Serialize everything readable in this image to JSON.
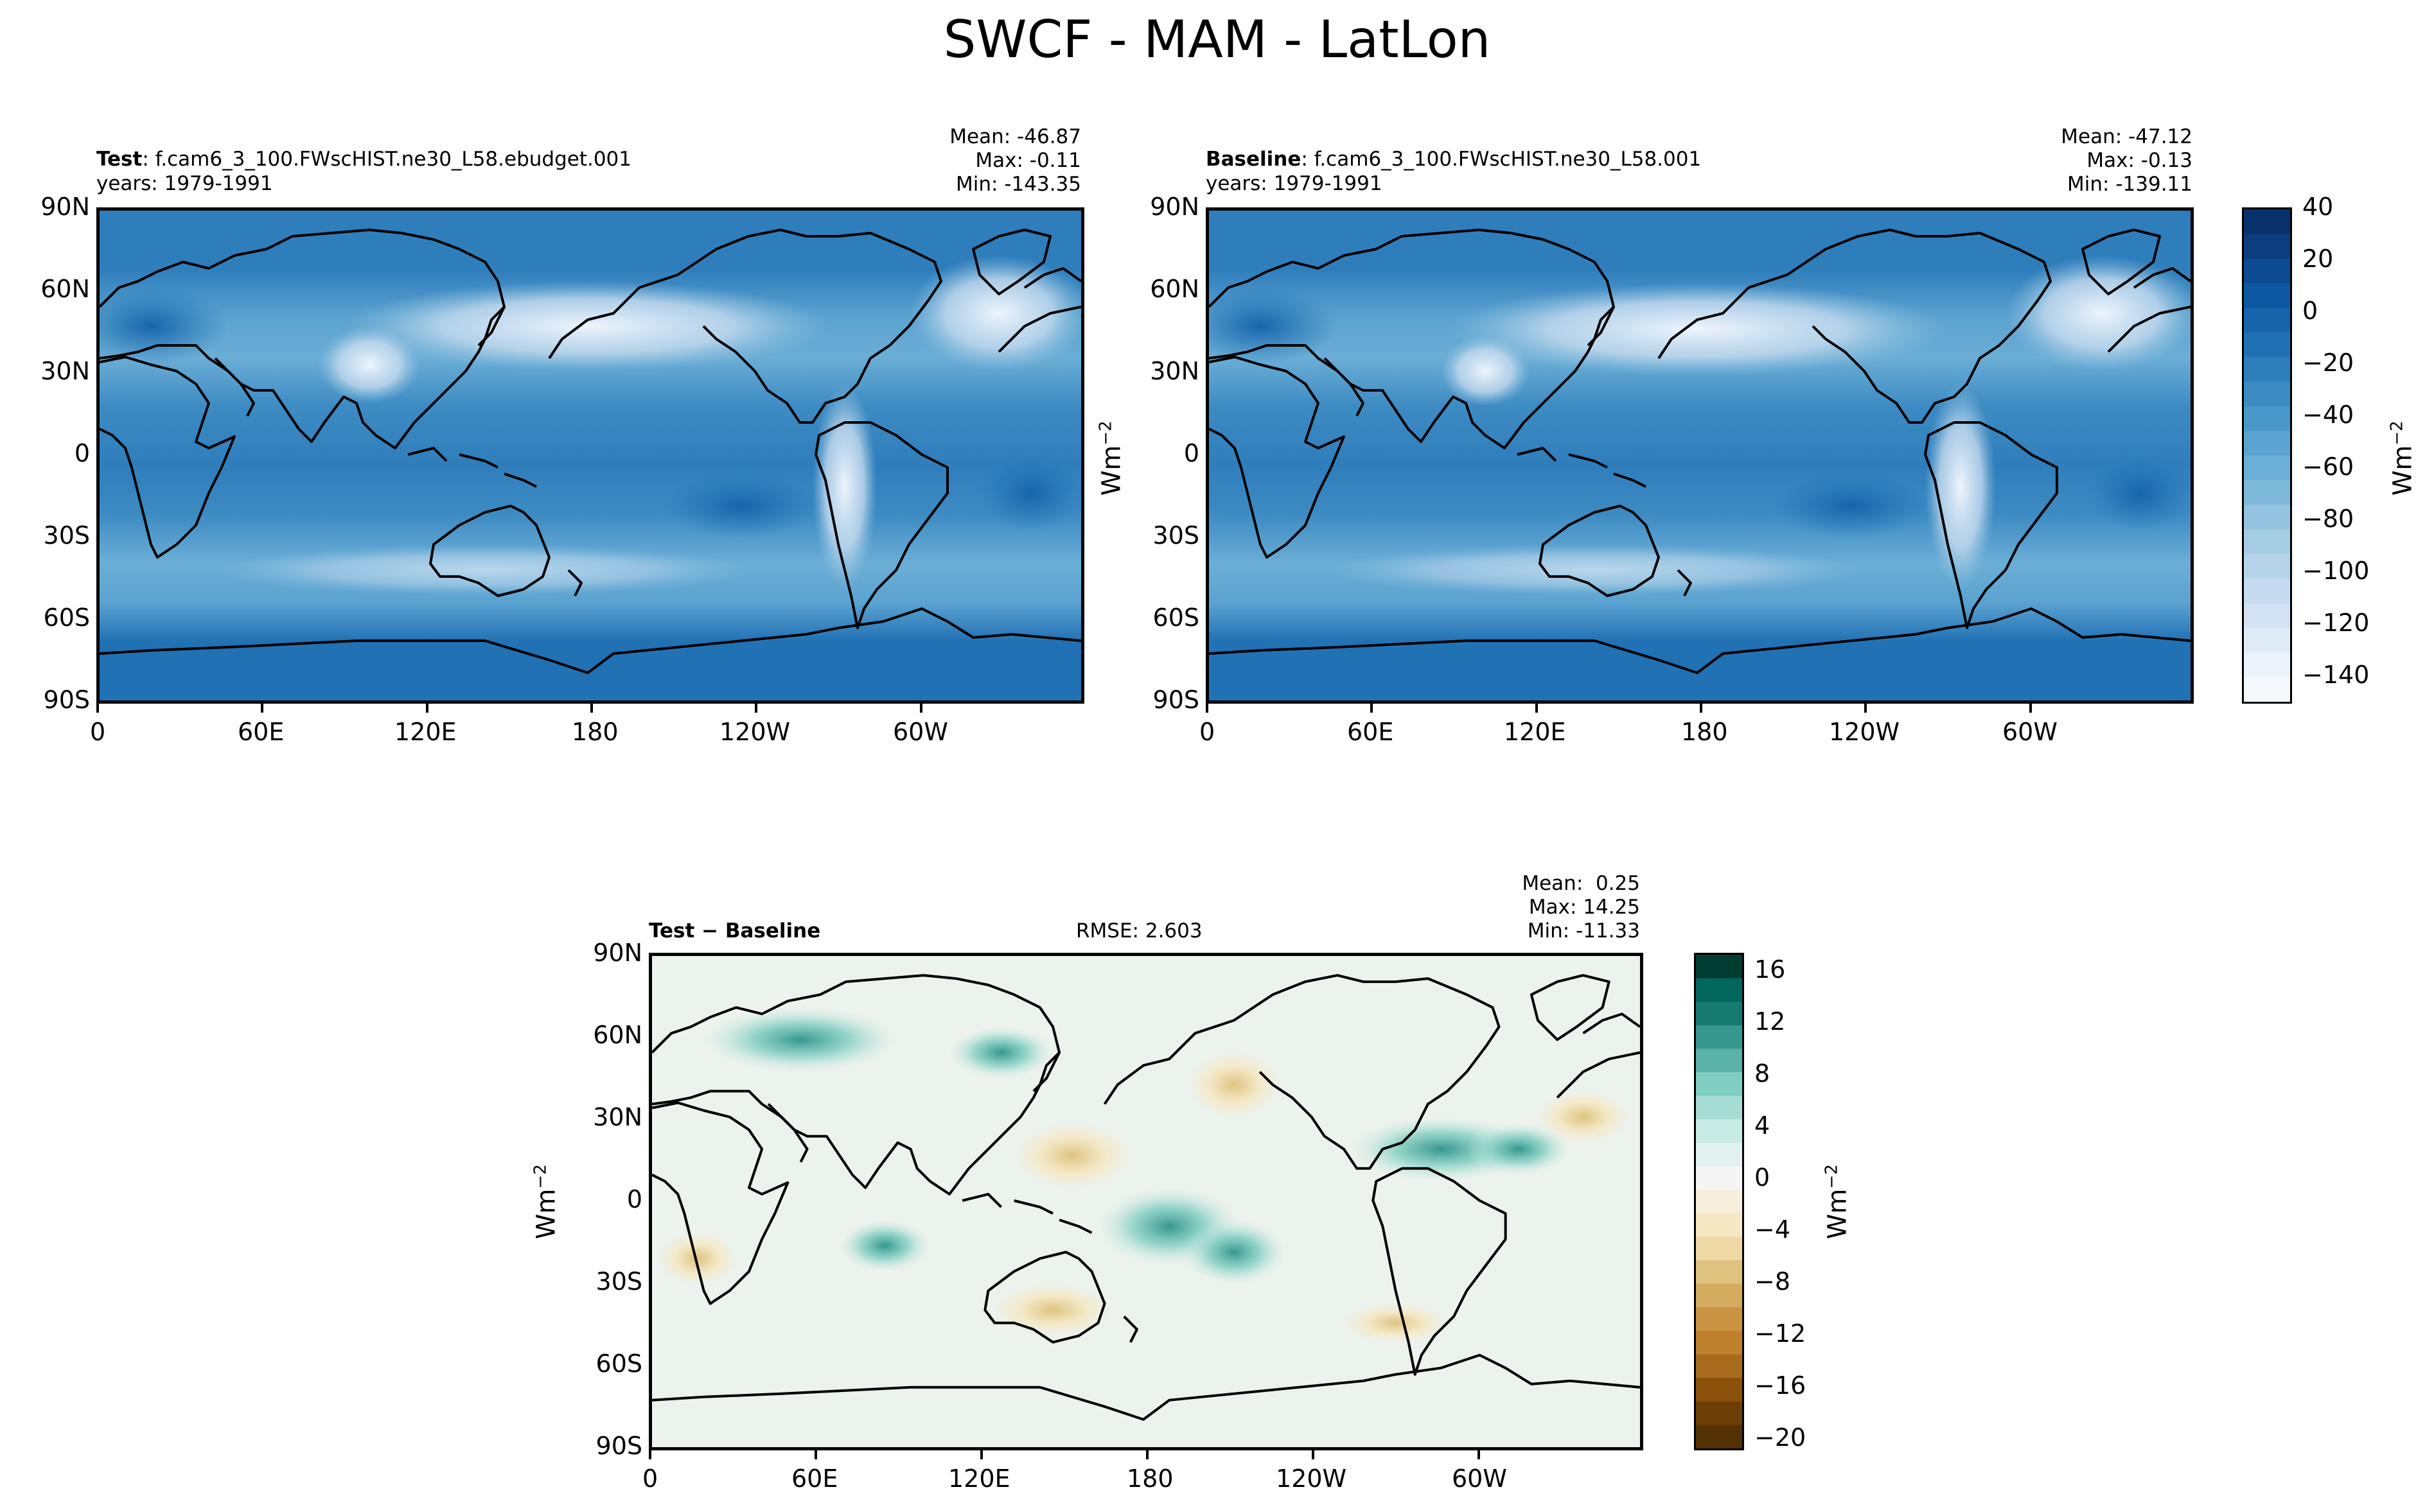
{
  "title": "SWCF - MAM - LatLon",
  "units_label": "Wm",
  "units_exp": "−2",
  "lat_ticks": [
    "90N",
    "60N",
    "30N",
    "0",
    "30S",
    "60S",
    "90S"
  ],
  "lon_ticks": [
    "0",
    "60E",
    "120E",
    "180",
    "120W",
    "60W"
  ],
  "panels": {
    "test": {
      "name": "Test",
      "case": ": f.cam6_3_100.FWscHIST.ne30_L58.ebudget.001",
      "years": "years: 1979-1991",
      "mean": "Mean: -46.87",
      "max": "Max: -0.11",
      "min": "Min: -143.35"
    },
    "baseline": {
      "name": "Baseline",
      "case": ": f.cam6_3_100.FWscHIST.ne30_L58.001",
      "years": "years: 1979-1991",
      "mean": "Mean: -47.12",
      "max": "Max: -0.13",
      "min": "Min: -139.11"
    },
    "diff": {
      "name": "Test − Baseline",
      "rmse": "RMSE: 2.603",
      "mean": "Mean:  0.25",
      "max": "Max: 14.25",
      "min": "Min: -11.33"
    }
  },
  "colorbars": {
    "main": {
      "labels": [
        "40",
        "20",
        "0",
        "−20",
        "−40",
        "−60",
        "−80",
        "−100",
        "−120",
        "−140"
      ],
      "range": [
        -150,
        40
      ],
      "colormap": "Blues",
      "colors_top_to_bottom": [
        "#08306b",
        "#0b3d7f",
        "#0c4a92",
        "#0d57a3",
        "#1764ab",
        "#2171b5",
        "#2f7ebc",
        "#3d8bc3",
        "#4a98c9",
        "#5ba3d0",
        "#6baed6",
        "#7fb9da",
        "#94c4df",
        "#a4cce3",
        "#b5d4e9",
        "#c6dbef",
        "#d3e3f3",
        "#dfebf7",
        "#ebf3fb",
        "#f4f9fe"
      ]
    },
    "diff": {
      "labels": [
        "16",
        "12",
        "8",
        "4",
        "0",
        "−4",
        "−8",
        "−12",
        "−16",
        "−20"
      ],
      "range": [
        -20,
        18
      ],
      "colormap": "BrBG",
      "colors_top_to_bottom": [
        "#003c30",
        "#01665e",
        "#167a71",
        "#35978f",
        "#5ab2a8",
        "#80cdc1",
        "#a5dcd3",
        "#c7eae5",
        "#e0f1ee",
        "#f5f5f5",
        "#f6efdc",
        "#f6e8c3",
        "#efd9a5",
        "#dfc27d",
        "#d4ab5f",
        "#c99342",
        "#bf812d",
        "#a86b1e",
        "#8c510a",
        "#6e3e07",
        "#543005"
      ]
    }
  }
}
